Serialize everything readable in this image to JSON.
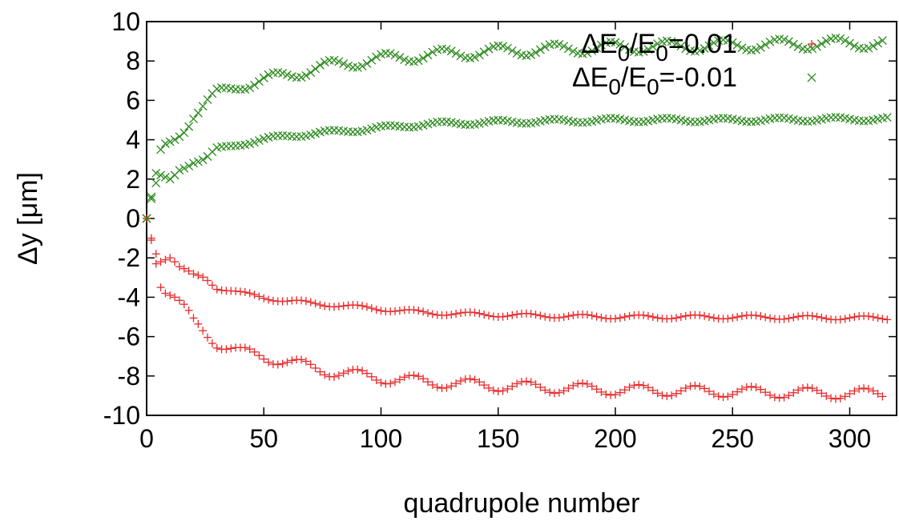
{
  "chart_data": {
    "type": "scatter",
    "title": "",
    "xlabel": "quadrupole number",
    "ylabel": "Δy [μm]",
    "xlim": [
      0,
      320
    ],
    "ylim": [
      -10,
      10
    ],
    "xticks": [
      "0",
      "50",
      "100",
      "150",
      "200",
      "250",
      "300"
    ],
    "yticks": [
      "10",
      "8",
      "6",
      "4",
      "2",
      "0",
      "-2",
      "-4",
      "-6",
      "-8",
      "-10"
    ],
    "grid": false,
    "legend_position": "top-right",
    "legend": [
      {
        "label_main": "ΔE",
        "sub1": "0",
        "mid": "/E",
        "sub2": "0",
        "tail": "=0.01",
        "marker": "plus",
        "color": "#e8292a"
      },
      {
        "label_main": "ΔE",
        "sub1": "0",
        "mid": "/E",
        "sub2": "0",
        "tail": "=-0.01",
        "marker": "cross",
        "color": "#2b8a1e"
      }
    ],
    "series": [
      {
        "marker": "plus",
        "color": "#e8292a",
        "band": "upper",
        "x": [
          0,
          2,
          4,
          6,
          8,
          10,
          12,
          14,
          20,
          25,
          30,
          40,
          50,
          60,
          80,
          100,
          120,
          150,
          175,
          200,
          250,
          300,
          316
        ],
        "y": [
          0,
          -1.0,
          -1.8,
          -2.2,
          -2.1,
          -2.0,
          -2.2,
          -2.5,
          -2.9,
          -3.0,
          -3.5,
          -3.8,
          -4.0,
          -4.2,
          -4.4,
          -4.6,
          -4.8,
          -4.9,
          -4.95,
          -5.0,
          -5.0,
          -5.05,
          -5.05
        ]
      },
      {
        "marker": "plus",
        "color": "#e8292a",
        "band": "lower",
        "x": [
          0,
          2,
          4,
          6,
          8,
          12,
          16,
          20,
          25,
          30,
          40,
          50,
          60,
          80,
          100,
          120,
          150,
          175,
          200,
          250,
          300,
          315
        ],
        "y": [
          0,
          -1.1,
          -2.3,
          -3.5,
          -3.8,
          -4.0,
          -4.6,
          -5.3,
          -5.8,
          -6.3,
          -6.8,
          -7.0,
          -7.3,
          -7.8,
          -8.1,
          -8.3,
          -8.5,
          -8.6,
          -8.7,
          -8.8,
          -8.9,
          -8.9
        ]
      },
      {
        "marker": "cross",
        "color": "#2b8a1e",
        "band": "upper",
        "x": [
          0,
          2,
          4,
          6,
          8,
          12,
          16,
          20,
          25,
          30,
          40,
          50,
          60,
          80,
          100,
          120,
          150,
          175,
          200,
          250,
          300,
          315
        ],
        "y": [
          0,
          1.1,
          2.3,
          3.5,
          3.8,
          4.0,
          4.6,
          5.3,
          5.8,
          6.3,
          6.8,
          7.0,
          7.3,
          7.8,
          8.1,
          8.3,
          8.5,
          8.6,
          8.7,
          8.8,
          8.9,
          8.9
        ]
      },
      {
        "marker": "cross",
        "color": "#2b8a1e",
        "band": "lower",
        "x": [
          0,
          2,
          4,
          6,
          8,
          10,
          12,
          14,
          20,
          25,
          30,
          40,
          50,
          60,
          80,
          100,
          120,
          150,
          175,
          200,
          250,
          300,
          316
        ],
        "y": [
          0,
          1.0,
          1.8,
          2.2,
          2.1,
          2.0,
          2.2,
          2.5,
          2.9,
          3.0,
          3.5,
          3.8,
          4.0,
          4.2,
          4.4,
          4.6,
          4.8,
          4.9,
          4.95,
          5.0,
          5.0,
          5.05,
          5.05
        ]
      }
    ]
  }
}
